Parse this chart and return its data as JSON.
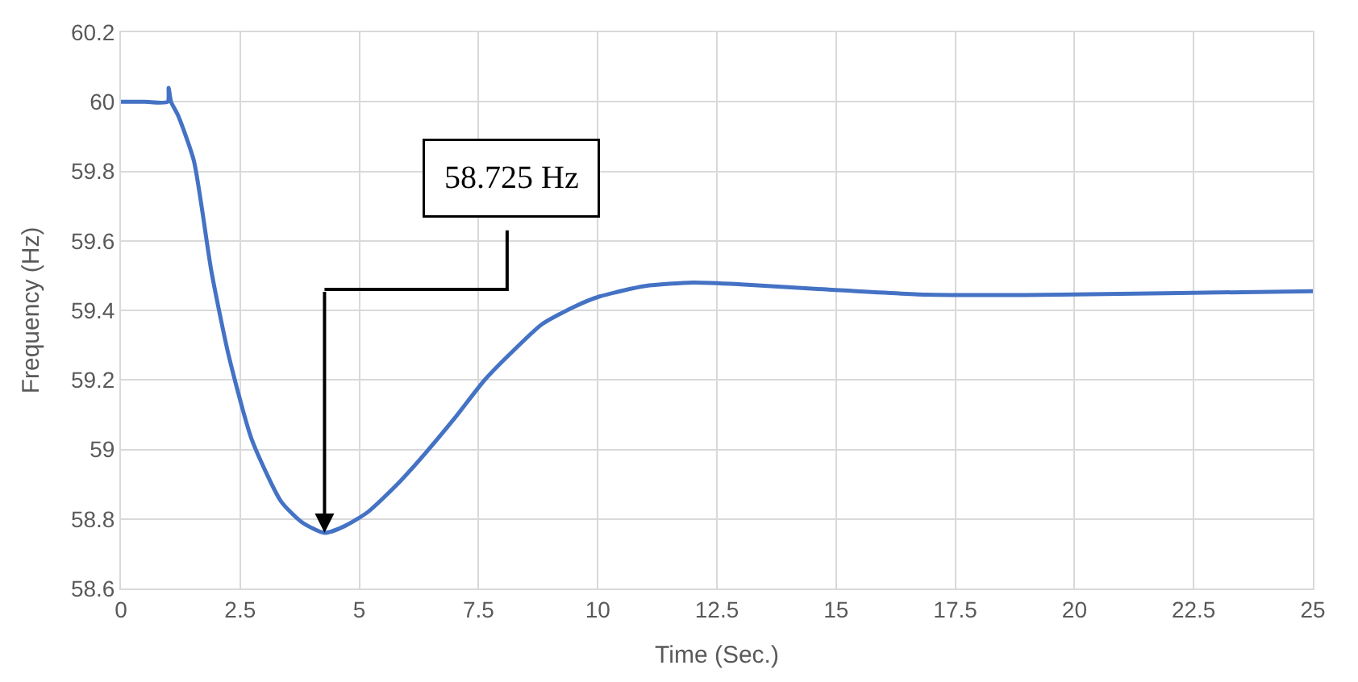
{
  "chart_data": {
    "type": "line",
    "xlabel": "Time (Sec.)",
    "ylabel": "Frequency (Hz)",
    "x": [
      0,
      0.5,
      0.98,
      1.0,
      1.05,
      1.2,
      1.53,
      1.9,
      2.26,
      2.74,
      3.36,
      3.8,
      4.27,
      4.7,
      5.18,
      5.8,
      6.39,
      7.0,
      7.63,
      8.2,
      8.83,
      9.5,
      10.04,
      11.0,
      12.0,
      13.0,
      14.8,
      16.9,
      19.7,
      22.2,
      25
    ],
    "series": [
      {
        "color": "#4472c4",
        "values": [
          60,
          60,
          60,
          60.04,
          60.0,
          59.96,
          59.83,
          59.51,
          59.27,
          59.03,
          58.85,
          58.79,
          58.76,
          58.78,
          58.82,
          58.9,
          58.99,
          59.09,
          59.2,
          59.28,
          59.36,
          59.41,
          59.44,
          59.47,
          59.48,
          59.475,
          59.46,
          59.445,
          59.445,
          59.45,
          59.455
        ]
      }
    ],
    "annotations": [
      "58.725 Hz"
    ],
    "xlim": [
      0,
      25
    ],
    "xticks": [
      0,
      2.5,
      5,
      7.5,
      10,
      12.5,
      15,
      17.5,
      20,
      22.5,
      25
    ],
    "ylim": [
      58.6,
      60.2
    ],
    "yticks": [
      58.6,
      58.8,
      59,
      59.2,
      59.4,
      59.6,
      59.8,
      60,
      60.2
    ],
    "grid": true,
    "legend": false
  }
}
